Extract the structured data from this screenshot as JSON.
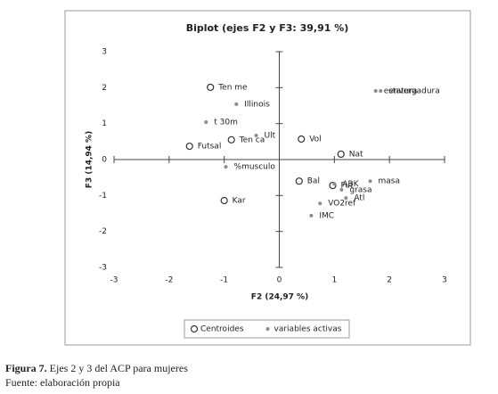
{
  "chart_data": {
    "type": "scatter",
    "title": "Biplot (ejes F2 y F3: 39,91 %)",
    "x_label": "F2 (24,97 %)",
    "y_label": "F3 (14,94 %)",
    "xlim": [
      -3,
      3
    ],
    "ylim": [
      -3,
      3
    ],
    "xticks": [
      -3,
      -2,
      -1,
      0,
      1,
      2,
      3
    ],
    "yticks": [
      -3,
      -2,
      -1,
      0,
      1,
      2,
      3
    ],
    "series": [
      {
        "name": "Centroides",
        "color": "#333333",
        "labels": [
          "Ten me",
          "Ten ca",
          "Futsal",
          "Vol",
          "Nat",
          "Bal",
          "Fut",
          "Kar"
        ],
        "x": [
          -1.25,
          -0.87,
          -1.63,
          0.4,
          1.12,
          0.36,
          0.97,
          -1.0
        ],
        "values": [
          2.01,
          0.55,
          0.37,
          0.57,
          0.15,
          -0.6,
          -0.72,
          -1.14
        ]
      },
      {
        "name": "variables activas",
        "color": "#8c8c8c",
        "labels": [
          "Illinois",
          "t 30m",
          "Ult",
          "%musculo",
          "estatura",
          "envergadura",
          "ABK",
          "masa",
          "grasa",
          "Atl",
          "VO2ref",
          "IMC"
        ],
        "x": [
          -0.78,
          -1.33,
          -0.42,
          -0.97,
          1.75,
          1.84,
          1.0,
          1.65,
          1.13,
          1.21,
          0.74,
          0.58
        ],
        "values": [
          1.54,
          1.04,
          0.67,
          -0.2,
          1.91,
          1.91,
          -0.68,
          -0.6,
          -0.84,
          -1.07,
          -1.22,
          -1.56
        ]
      }
    ]
  },
  "figure_label": "Figura 7.",
  "caption": "Ejes 2 y 3 del ACP para mujeres",
  "source": "Fuente: elaboración propia"
}
